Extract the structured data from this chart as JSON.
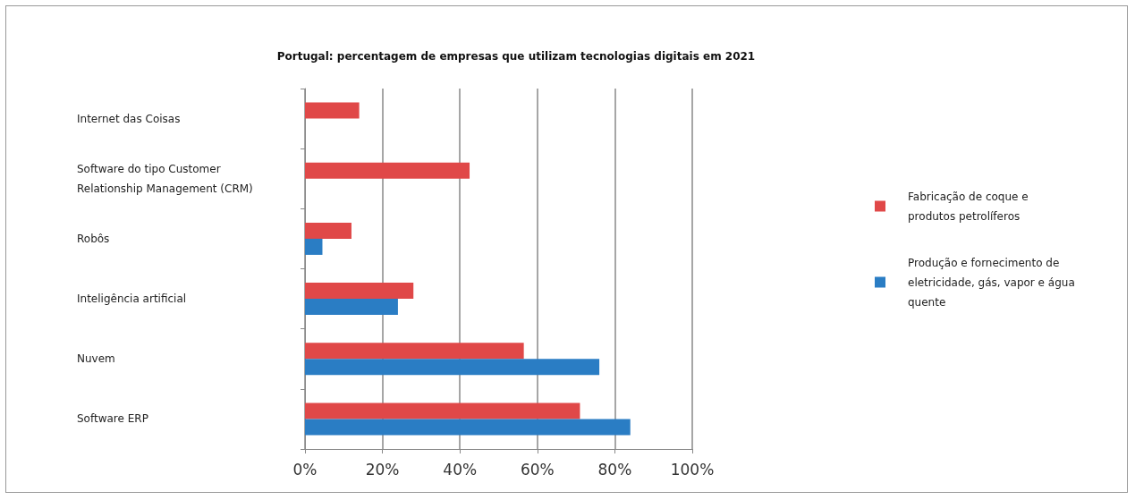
{
  "chart_data": {
    "type": "bar",
    "orientation": "horizontal",
    "title": "Portugal: percentagem de empresas que utilizam tecnologias digitais em 2021",
    "categories": [
      "Internet das Coisas",
      "Software do tipo Customer Relationship Management (CRM)",
      "Robôs",
      "Inteligência artificial",
      "Nuvem",
      "Software ERP"
    ],
    "series": [
      {
        "name": "Fabricação de coque e produtos petrolíferos",
        "color": "#e04848",
        "values": [
          14,
          42.5,
          12,
          28,
          56.5,
          71
        ]
      },
      {
        "name": "Produção e fornecimento de eletricidade, gás, vapor e água quente",
        "color": "#2a7dc4",
        "values": [
          null,
          null,
          4.5,
          24,
          76,
          84
        ]
      }
    ],
    "xlim": [
      0,
      100
    ],
    "xticks": [
      {
        "value": 0,
        "label": "0%"
      },
      {
        "value": 20,
        "label": "20%"
      },
      {
        "value": 40,
        "label": "40%"
      },
      {
        "value": 60,
        "label": "60%"
      },
      {
        "value": 80,
        "label": "80%"
      },
      {
        "value": 100,
        "label": "100%"
      }
    ],
    "grid": "x",
    "legend": "right"
  }
}
